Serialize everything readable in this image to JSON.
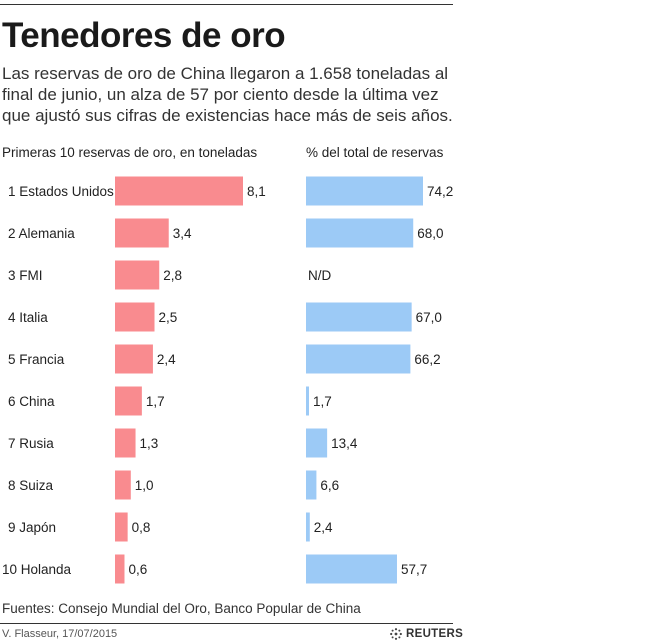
{
  "title": "Tenedores de oro",
  "subtitle": "Las reservas de oro de China llegaron a 1.658 toneladas al final de junio, un alza de 57 por ciento desde la última vez que ajustó sus cifras de existencias hace más de seis años.",
  "footer": {
    "source": "Fuentes: Consejo Mundial del Oro, Banco Popular de China",
    "credit": "V. Flasseur, 17/07/2015",
    "brand": "REUTERS"
  },
  "colors": {
    "left_bar": "#f98b8f",
    "right_bar": "#9ccaf6"
  },
  "chart_data": [
    {
      "type": "bar",
      "title": "Primeras 10 reservas de oro, en toneladas",
      "categories": [
        "1 Estados Unidos",
        "2 Alemania",
        "3 FMI",
        "4 Italia",
        "5 Francia",
        "6 China",
        "7 Rusia",
        "8 Suiza",
        "9 Japón",
        "10 Holanda"
      ],
      "values": [
        8.1,
        3.4,
        2.8,
        2.5,
        2.4,
        1.7,
        1.3,
        1.0,
        0.8,
        0.6
      ],
      "value_labels": [
        "8,1",
        "3,4",
        "2,8",
        "2,5",
        "2,4",
        "1,7",
        "1,3",
        "1,0",
        "0,8",
        "0,6"
      ],
      "orientation": "horizontal"
    },
    {
      "type": "bar",
      "title": "% del total de reservas",
      "categories": [
        "1 Estados Unidos",
        "2 Alemania",
        "3 FMI",
        "4 Italia",
        "5 Francia",
        "6 China",
        "7 Rusia",
        "8 Suiza",
        "9 Japón",
        "10 Holanda"
      ],
      "values": [
        74.2,
        68.0,
        null,
        67.0,
        66.2,
        1.7,
        13.4,
        6.6,
        2.4,
        57.7
      ],
      "value_labels": [
        "74,2",
        "68,0",
        "N/D",
        "67,0",
        "66,2",
        "1,7",
        "13,4",
        "6,6",
        "2,4",
        "57,7"
      ],
      "orientation": "horizontal"
    }
  ]
}
